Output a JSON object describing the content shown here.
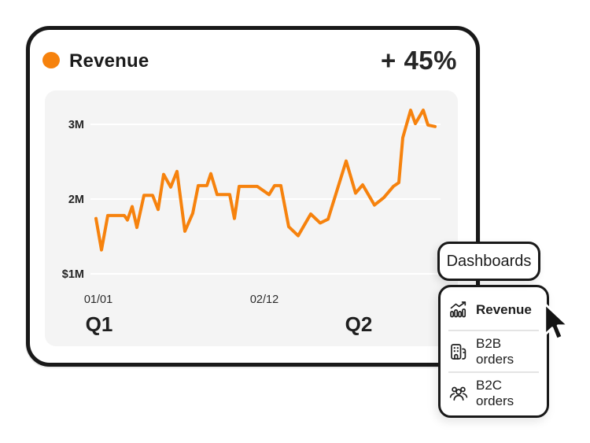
{
  "colors": {
    "accent": "#F6820D",
    "ink": "#191919",
    "panel_bg": "#F4F4F4",
    "gridline": "#FFFFFF",
    "divider": "#E4E4E4"
  },
  "header": {
    "title": "Revenue",
    "change": "+ 45%"
  },
  "chart_data": {
    "type": "line",
    "title": "Revenue",
    "unit": "USD millions",
    "ylim": [
      1,
      3.4
    ],
    "grid": true,
    "legend_position": "none",
    "y_ticks": [
      {
        "label": "3M",
        "value": 3
      },
      {
        "label": "2M",
        "value": 2
      },
      {
        "label": "$1M",
        "value": 1
      }
    ],
    "x_ticks": [
      {
        "label": "01/01",
        "x": 125
      },
      {
        "label": "02/12",
        "x": 336
      }
    ],
    "quarter_labels": [
      {
        "label": "Q1",
        "x": 126
      },
      {
        "label": "Q2",
        "x": 456
      }
    ],
    "series": [
      {
        "name": "Revenue",
        "color": "#F6820D",
        "points": [
          [
            122,
            1.74
          ],
          [
            129,
            1.32
          ],
          [
            137,
            1.78
          ],
          [
            158,
            1.78
          ],
          [
            162,
            1.72
          ],
          [
            168,
            1.9
          ],
          [
            174,
            1.62
          ],
          [
            183,
            2.05
          ],
          [
            194,
            2.05
          ],
          [
            201,
            1.86
          ],
          [
            208,
            2.33
          ],
          [
            217,
            2.16
          ],
          [
            225,
            2.37
          ],
          [
            235,
            1.57
          ],
          [
            245,
            1.81
          ],
          [
            252,
            2.18
          ],
          [
            263,
            2.18
          ],
          [
            268,
            2.34
          ],
          [
            276,
            2.06
          ],
          [
            292,
            2.06
          ],
          [
            298,
            1.74
          ],
          [
            304,
            2.17
          ],
          [
            327,
            2.17
          ],
          [
            342,
            2.06
          ],
          [
            349,
            2.18
          ],
          [
            357,
            2.18
          ],
          [
            367,
            1.63
          ],
          [
            379,
            1.51
          ],
          [
            395,
            1.8
          ],
          [
            407,
            1.68
          ],
          [
            417,
            1.73
          ],
          [
            440,
            2.51
          ],
          [
            452,
            2.08
          ],
          [
            461,
            2.19
          ],
          [
            476,
            1.92
          ],
          [
            488,
            2.02
          ],
          [
            500,
            2.17
          ],
          [
            507,
            2.22
          ],
          [
            512,
            2.82
          ],
          [
            522,
            3.19
          ],
          [
            528,
            3.01
          ],
          [
            538,
            3.19
          ],
          [
            544,
            2.99
          ],
          [
            553,
            2.97
          ]
        ]
      }
    ]
  },
  "toolbar": {
    "dashboards_label": "Dashboards"
  },
  "dropdown": {
    "items": [
      {
        "label": "Revenue",
        "icon": "chart-growth-icon",
        "active": true
      },
      {
        "label": "B2B orders",
        "icon": "building-icon",
        "active": false
      },
      {
        "label": "B2C orders",
        "icon": "people-group-icon",
        "active": false
      }
    ]
  }
}
